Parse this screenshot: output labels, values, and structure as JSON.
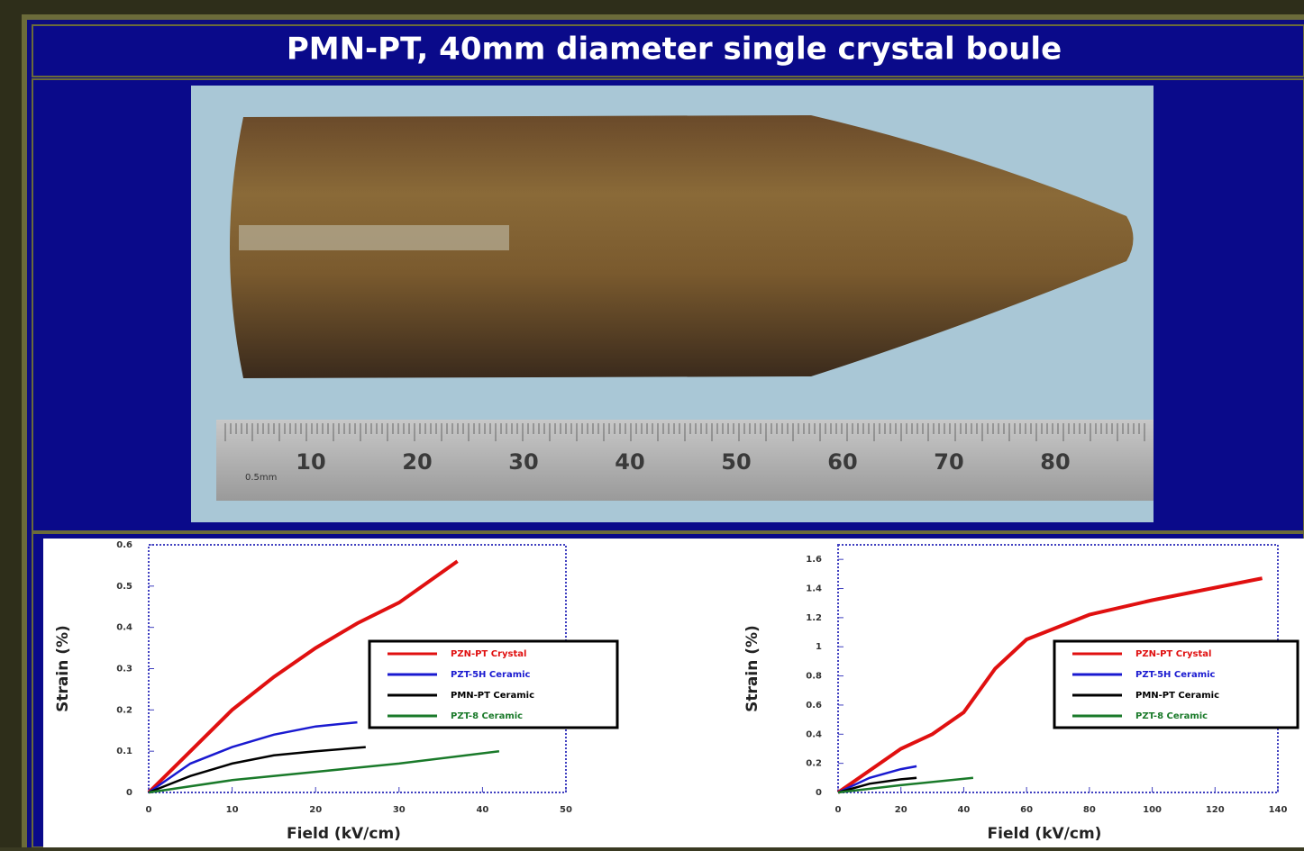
{
  "header": {
    "title": "PMN-PT, 40mm diameter single crystal boule"
  },
  "photo": {
    "scale_note": "0.5mm",
    "ruler_labels": [
      "10",
      "20",
      "30",
      "40",
      "50",
      "60",
      "70",
      "80"
    ]
  },
  "chart_data": [
    {
      "type": "line",
      "x_label": "Field (kV/cm)",
      "y_label": "Strain (%)",
      "xlim": [
        0,
        50
      ],
      "xticks": [
        0,
        10,
        20,
        30,
        40,
        50
      ],
      "ylim": [
        0,
        0.6
      ],
      "yticks": [
        0,
        0.1,
        0.2,
        0.3,
        0.4,
        0.5,
        0.6
      ],
      "series": [
        {
          "name": "PZN-PT Crystal",
          "color": "#e01010",
          "x": [
            0,
            5,
            10,
            15,
            20,
            25,
            30,
            37
          ],
          "values": [
            0,
            0.1,
            0.2,
            0.28,
            0.35,
            0.41,
            0.46,
            0.56
          ]
        },
        {
          "name": "PZT-5H Ceramic",
          "color": "#1a1ad0",
          "x": [
            0,
            5,
            10,
            15,
            20,
            25
          ],
          "values": [
            0,
            0.07,
            0.11,
            0.14,
            0.16,
            0.17
          ]
        },
        {
          "name": "PMN-PT Ceramic",
          "color": "#000000",
          "x": [
            0,
            5,
            10,
            15,
            20,
            26
          ],
          "values": [
            0,
            0.04,
            0.07,
            0.09,
            0.1,
            0.11
          ]
        },
        {
          "name": "PZT-8 Ceramic",
          "color": "#1a7a2a",
          "x": [
            0,
            10,
            20,
            30,
            42
          ],
          "values": [
            0,
            0.03,
            0.05,
            0.07,
            0.1
          ]
        }
      ]
    },
    {
      "type": "line",
      "x_label": "Field (kV/cm)",
      "y_label": "Strain (%)",
      "xlim": [
        0,
        140
      ],
      "xticks": [
        0,
        20,
        40,
        60,
        80,
        100,
        120,
        140
      ],
      "ylim": [
        0,
        1.7
      ],
      "yticks": [
        0,
        0.2,
        0.4,
        0.6,
        0.8,
        1,
        1.2,
        1.4,
        1.6
      ],
      "series": [
        {
          "name": "PZN-PT Crystal",
          "color": "#e01010",
          "x": [
            0,
            20,
            30,
            40,
            50,
            60,
            80,
            100,
            135
          ],
          "values": [
            0,
            0.3,
            0.4,
            0.55,
            0.85,
            1.05,
            1.22,
            1.32,
            1.47
          ]
        },
        {
          "name": "PZT-5H Ceramic",
          "color": "#1a1ad0",
          "x": [
            0,
            10,
            20,
            25
          ],
          "values": [
            0,
            0.1,
            0.16,
            0.18
          ]
        },
        {
          "name": "PMN-PT Ceramic",
          "color": "#000000",
          "x": [
            0,
            10,
            20,
            25
          ],
          "values": [
            0,
            0.06,
            0.09,
            0.1
          ]
        },
        {
          "name": "PZT-8 Ceramic",
          "color": "#1a7a2a",
          "x": [
            0,
            20,
            43
          ],
          "values": [
            0,
            0.05,
            0.1
          ]
        }
      ]
    }
  ]
}
